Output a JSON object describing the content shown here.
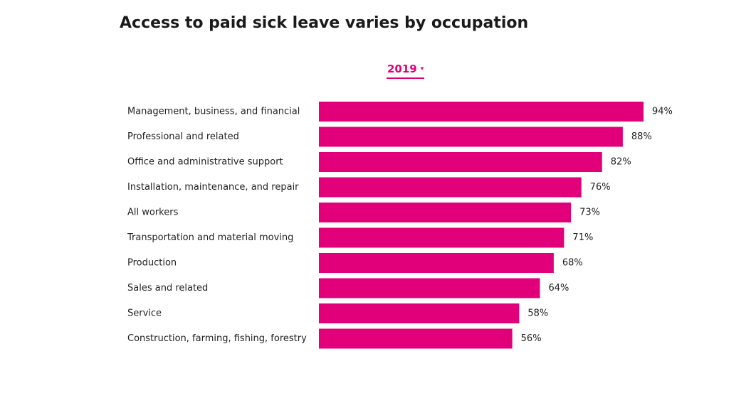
{
  "title": "Access to paid sick leave varies by occupation",
  "year_select": {
    "value": "2019",
    "caret": "▾"
  },
  "colors": {
    "bar": "#e2007a",
    "accent": "#e2007a"
  },
  "chart_data": {
    "type": "bar",
    "orientation": "horizontal",
    "title": "Access to paid sick leave varies by occupation",
    "categories": [
      "Management, business, and financial",
      "Professional and related",
      "Office and administrative support",
      "Installation, maintenance, and repair",
      "All workers",
      "Transportation and material moving",
      "Production",
      "Sales and related",
      "Service",
      "Construction, farming, fishing, forestry"
    ],
    "values": [
      94,
      88,
      82,
      76,
      73,
      71,
      68,
      64,
      58,
      56
    ],
    "value_suffix": "%",
    "xlim": [
      0,
      94
    ],
    "grid": false,
    "legend": "none"
  }
}
